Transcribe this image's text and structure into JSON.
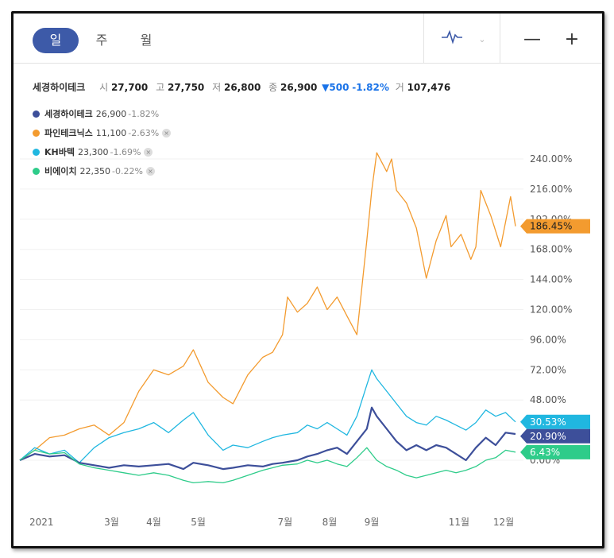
{
  "toolbar": {
    "periods": [
      "일",
      "주",
      "월"
    ],
    "zoom_out": "—",
    "zoom_in": "+"
  },
  "summary": {
    "name": "세경하이테크",
    "open_label": "시",
    "open": "27,700",
    "high_label": "고",
    "high": "27,750",
    "low_label": "저",
    "low": "26,800",
    "close_label": "종",
    "close": "26,900",
    "change": "▼500",
    "change_pct": "-1.82%",
    "volume_label": "거",
    "volume": "107,476"
  },
  "legend": [
    {
      "name": "세경하이테크",
      "price": "26,900",
      "pct": "-1.82%",
      "color": "#3d4f9a",
      "removable": false
    },
    {
      "name": "파인테크닉스",
      "price": "11,100",
      "pct": "-2.63%",
      "color": "#f39b2f",
      "removable": true
    },
    {
      "name": "KH바텍",
      "price": "23,300",
      "pct": "-1.69%",
      "color": "#20b7e0",
      "removable": true
    },
    {
      "name": "비에이치",
      "price": "22,350",
      "pct": "-0.22%",
      "color": "#2ecc8a",
      "removable": true
    }
  ],
  "chart_data": {
    "type": "line",
    "y_tick_labels": [
      "0.00%",
      "48.00%",
      "72.00%",
      "96.00%",
      "120.00%",
      "144.00%",
      "168.00%",
      "192.00%",
      "216.00%",
      "240.00%"
    ],
    "y_ticks": [
      0,
      48,
      72,
      96,
      120,
      144,
      168,
      192,
      216,
      240
    ],
    "y_range": [
      -20,
      255
    ],
    "x_ticks": [
      {
        "label": "2021",
        "t": 0.0
      },
      {
        "label": "3월",
        "t": 0.17
      },
      {
        "label": "4월",
        "t": 0.255
      },
      {
        "label": "5월",
        "t": 0.345
      },
      {
        "label": "7월",
        "t": 0.52
      },
      {
        "label": "8월",
        "t": 0.61
      },
      {
        "label": "9월",
        "t": 0.695
      },
      {
        "label": "11월",
        "t": 0.865
      },
      {
        "label": "12월",
        "t": 0.955
      }
    ],
    "series": [
      {
        "name": "파인테크닉스",
        "color": "#f39b2f",
        "last_label": "186.45%",
        "last_value": 186.45,
        "points": [
          [
            0,
            0
          ],
          [
            0.03,
            8
          ],
          [
            0.06,
            18
          ],
          [
            0.09,
            20
          ],
          [
            0.12,
            25
          ],
          [
            0.15,
            28
          ],
          [
            0.18,
            20
          ],
          [
            0.21,
            30
          ],
          [
            0.24,
            55
          ],
          [
            0.27,
            72
          ],
          [
            0.3,
            68
          ],
          [
            0.33,
            75
          ],
          [
            0.35,
            88
          ],
          [
            0.38,
            62
          ],
          [
            0.41,
            50
          ],
          [
            0.43,
            45
          ],
          [
            0.46,
            68
          ],
          [
            0.49,
            82
          ],
          [
            0.51,
            86
          ],
          [
            0.53,
            100
          ],
          [
            0.54,
            130
          ],
          [
            0.56,
            118
          ],
          [
            0.58,
            125
          ],
          [
            0.6,
            138
          ],
          [
            0.62,
            120
          ],
          [
            0.64,
            130
          ],
          [
            0.66,
            115
          ],
          [
            0.68,
            100
          ],
          [
            0.7,
            175
          ],
          [
            0.71,
            215
          ],
          [
            0.72,
            245
          ],
          [
            0.74,
            230
          ],
          [
            0.75,
            240
          ],
          [
            0.76,
            215
          ],
          [
            0.78,
            205
          ],
          [
            0.8,
            185
          ],
          [
            0.82,
            145
          ],
          [
            0.84,
            175
          ],
          [
            0.86,
            195
          ],
          [
            0.87,
            170
          ],
          [
            0.89,
            180
          ],
          [
            0.91,
            160
          ],
          [
            0.92,
            170
          ],
          [
            0.93,
            215
          ],
          [
            0.95,
            195
          ],
          [
            0.97,
            170
          ],
          [
            0.99,
            210
          ],
          [
            1.0,
            186.45
          ]
        ]
      },
      {
        "name": "KH바텍",
        "color": "#20b7e0",
        "last_label": "30.53%",
        "last_value": 30.53,
        "points": [
          [
            0,
            0
          ],
          [
            0.03,
            10
          ],
          [
            0.06,
            5
          ],
          [
            0.09,
            8
          ],
          [
            0.12,
            -2
          ],
          [
            0.15,
            10
          ],
          [
            0.18,
            18
          ],
          [
            0.21,
            22
          ],
          [
            0.24,
            25
          ],
          [
            0.27,
            30
          ],
          [
            0.3,
            22
          ],
          [
            0.33,
            32
          ],
          [
            0.35,
            38
          ],
          [
            0.38,
            20
          ],
          [
            0.41,
            8
          ],
          [
            0.43,
            12
          ],
          [
            0.46,
            10
          ],
          [
            0.49,
            15
          ],
          [
            0.51,
            18
          ],
          [
            0.53,
            20
          ],
          [
            0.56,
            22
          ],
          [
            0.58,
            28
          ],
          [
            0.6,
            25
          ],
          [
            0.62,
            30
          ],
          [
            0.64,
            25
          ],
          [
            0.66,
            20
          ],
          [
            0.68,
            35
          ],
          [
            0.7,
            60
          ],
          [
            0.71,
            72
          ],
          [
            0.72,
            65
          ],
          [
            0.74,
            55
          ],
          [
            0.76,
            45
          ],
          [
            0.78,
            35
          ],
          [
            0.8,
            30
          ],
          [
            0.82,
            28
          ],
          [
            0.84,
            35
          ],
          [
            0.86,
            32
          ],
          [
            0.88,
            28
          ],
          [
            0.9,
            24
          ],
          [
            0.92,
            30
          ],
          [
            0.94,
            40
          ],
          [
            0.96,
            35
          ],
          [
            0.98,
            38
          ],
          [
            1.0,
            30.53
          ]
        ]
      },
      {
        "name": "세경하이테크",
        "color": "#3d4f9a",
        "last_label": "20.90%",
        "last_value": 20.9,
        "points": [
          [
            0,
            0
          ],
          [
            0.03,
            5
          ],
          [
            0.06,
            3
          ],
          [
            0.09,
            4
          ],
          [
            0.12,
            -2
          ],
          [
            0.15,
            -4
          ],
          [
            0.18,
            -6
          ],
          [
            0.21,
            -4
          ],
          [
            0.24,
            -5
          ],
          [
            0.27,
            -4
          ],
          [
            0.3,
            -3
          ],
          [
            0.33,
            -7
          ],
          [
            0.35,
            -2
          ],
          [
            0.38,
            -4
          ],
          [
            0.41,
            -7
          ],
          [
            0.43,
            -6
          ],
          [
            0.46,
            -4
          ],
          [
            0.49,
            -5
          ],
          [
            0.51,
            -3
          ],
          [
            0.53,
            -2
          ],
          [
            0.56,
            0
          ],
          [
            0.58,
            3
          ],
          [
            0.6,
            5
          ],
          [
            0.62,
            8
          ],
          [
            0.64,
            10
          ],
          [
            0.66,
            5
          ],
          [
            0.68,
            15
          ],
          [
            0.7,
            25
          ],
          [
            0.71,
            42
          ],
          [
            0.72,
            35
          ],
          [
            0.74,
            25
          ],
          [
            0.76,
            15
          ],
          [
            0.78,
            8
          ],
          [
            0.8,
            12
          ],
          [
            0.82,
            8
          ],
          [
            0.84,
            12
          ],
          [
            0.86,
            10
          ],
          [
            0.88,
            5
          ],
          [
            0.9,
            0
          ],
          [
            0.92,
            10
          ],
          [
            0.94,
            18
          ],
          [
            0.96,
            12
          ],
          [
            0.98,
            22
          ],
          [
            1.0,
            20.9
          ]
        ]
      },
      {
        "name": "비에이치",
        "color": "#2ecc8a",
        "last_label": "6.43%",
        "last_value": 6.43,
        "points": [
          [
            0,
            0
          ],
          [
            0.03,
            8
          ],
          [
            0.06,
            5
          ],
          [
            0.09,
            6
          ],
          [
            0.12,
            -3
          ],
          [
            0.15,
            -6
          ],
          [
            0.18,
            -8
          ],
          [
            0.21,
            -10
          ],
          [
            0.24,
            -12
          ],
          [
            0.27,
            -10
          ],
          [
            0.3,
            -12
          ],
          [
            0.33,
            -16
          ],
          [
            0.35,
            -18
          ],
          [
            0.38,
            -17
          ],
          [
            0.41,
            -18
          ],
          [
            0.43,
            -16
          ],
          [
            0.46,
            -12
          ],
          [
            0.49,
            -8
          ],
          [
            0.51,
            -6
          ],
          [
            0.53,
            -4
          ],
          [
            0.56,
            -3
          ],
          [
            0.58,
            0
          ],
          [
            0.6,
            -2
          ],
          [
            0.62,
            0
          ],
          [
            0.64,
            -3
          ],
          [
            0.66,
            -5
          ],
          [
            0.68,
            2
          ],
          [
            0.7,
            10
          ],
          [
            0.71,
            5
          ],
          [
            0.72,
            0
          ],
          [
            0.74,
            -5
          ],
          [
            0.76,
            -8
          ],
          [
            0.78,
            -12
          ],
          [
            0.8,
            -14
          ],
          [
            0.82,
            -12
          ],
          [
            0.84,
            -10
          ],
          [
            0.86,
            -8
          ],
          [
            0.88,
            -10
          ],
          [
            0.9,
            -8
          ],
          [
            0.92,
            -5
          ],
          [
            0.94,
            0
          ],
          [
            0.96,
            2
          ],
          [
            0.98,
            8
          ],
          [
            1.0,
            6.43
          ]
        ]
      }
    ]
  }
}
